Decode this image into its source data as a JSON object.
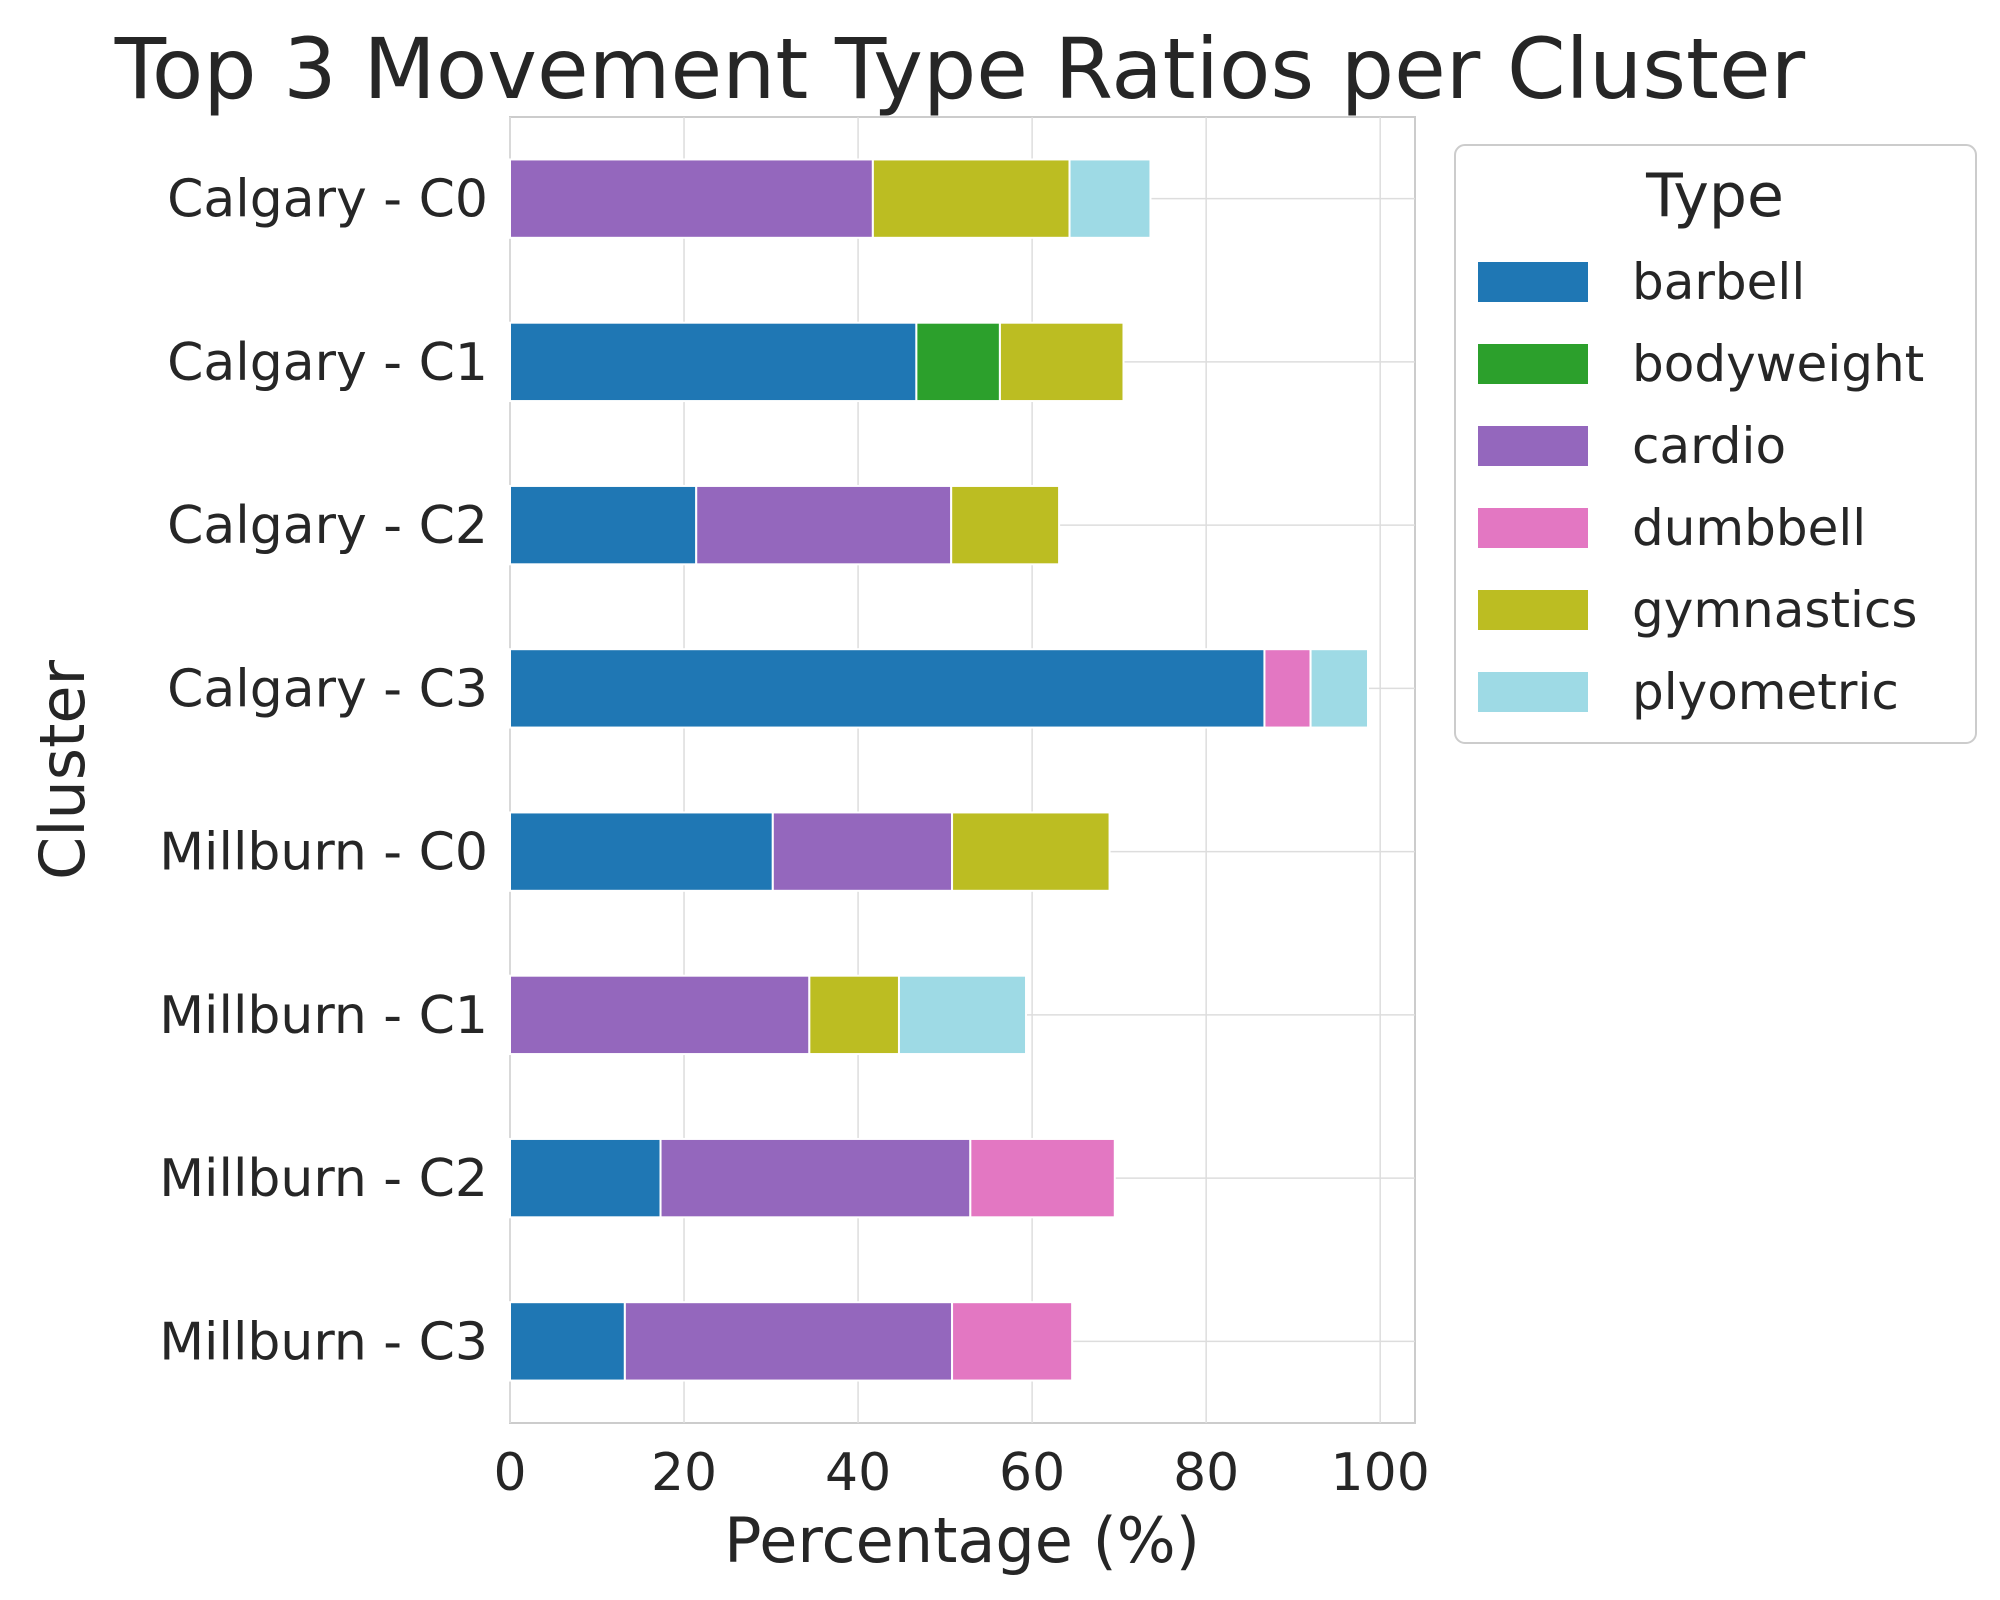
{
  "chart_data": {
    "type": "bar",
    "orientation": "horizontal",
    "stacked": true,
    "title": "Top 3 Movement Type Ratios per Cluster",
    "xlabel": "Percentage (%)",
    "ylabel": "Cluster",
    "xlim": [
      0,
      104
    ],
    "xticks": [
      0,
      20,
      40,
      60,
      80,
      100
    ],
    "grid": true,
    "legend_title": "Type",
    "legend_position": "outside-right-top",
    "categories": [
      "Calgary - C0",
      "Calgary - C1",
      "Calgary - C2",
      "Calgary - C3",
      "Millburn - C0",
      "Millburn - C1",
      "Millburn - C2",
      "Millburn - C3"
    ],
    "series": [
      {
        "name": "barbell",
        "color": "#1f77b4",
        "values": [
          0,
          46.7,
          21.4,
          86.7,
          30.2,
          0,
          17.3,
          13.2
        ]
      },
      {
        "name": "bodyweight",
        "color": "#2ca02c",
        "values": [
          0,
          9.6,
          0,
          0,
          0,
          0,
          0,
          0
        ]
      },
      {
        "name": "cardio",
        "color": "#9467bd",
        "values": [
          41.7,
          0,
          29.3,
          0,
          20.6,
          34.4,
          35.6,
          37.6
        ]
      },
      {
        "name": "dumbbell",
        "color": "#e377c2",
        "values": [
          0,
          0,
          0,
          5.3,
          0,
          0,
          16.6,
          13.8
        ]
      },
      {
        "name": "gymnastics",
        "color": "#bcbd22",
        "values": [
          22.6,
          14.2,
          12.4,
          0,
          18.1,
          10.3,
          0,
          0
        ]
      },
      {
        "name": "plyometric",
        "color": "#9edae5",
        "values": [
          9.3,
          0,
          0,
          6.6,
          0,
          14.6,
          0,
          0
        ]
      }
    ]
  }
}
